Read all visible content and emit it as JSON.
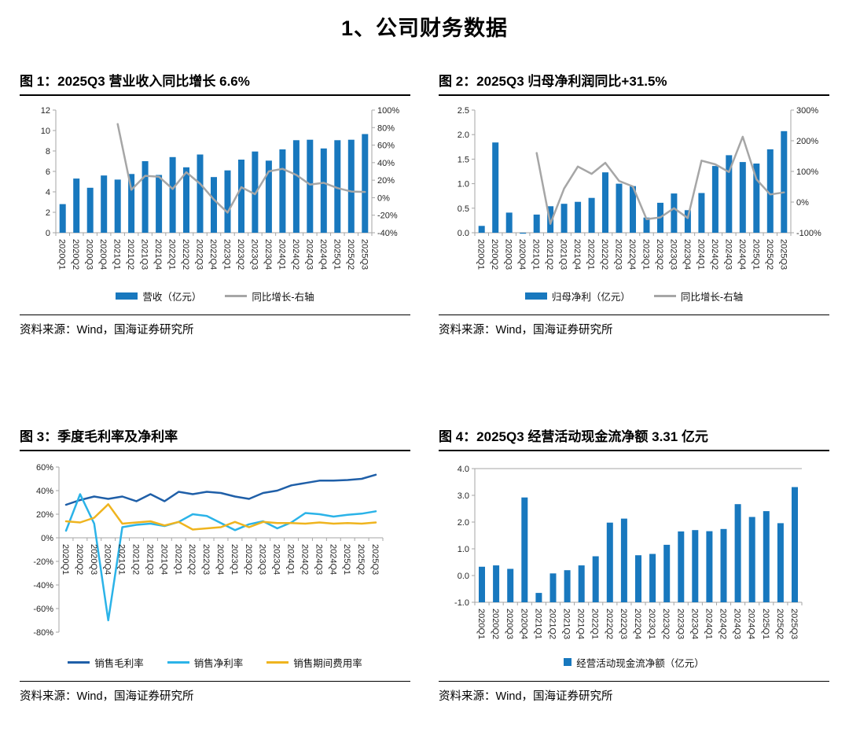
{
  "page": {
    "title": "1、公司财务数据"
  },
  "source": {
    "p1": "资料来源：",
    "p2": "Wind，",
    "p3": "国海证券研究所"
  },
  "chart_data": [
    {
      "type": "combo-bar-line",
      "title": "图 1：2025Q3 营业收入同比增长 6.6%",
      "categories": [
        "2020Q1",
        "2020Q2",
        "2020Q3",
        "2020Q4",
        "2021Q1",
        "2021Q2",
        "2021Q3",
        "2021Q4",
        "2022Q1",
        "2022Q2",
        "2022Q3",
        "2022Q4",
        "2023Q1",
        "2023Q2",
        "2023Q3",
        "2023Q4",
        "2024Q1",
        "2024Q2",
        "2024Q3",
        "2024Q4",
        "2025Q1",
        "2025Q2",
        "2025Q3"
      ],
      "left_axis": {
        "min": 0,
        "max": 12,
        "tick_values": [
          12,
          10,
          8,
          6,
          4,
          2,
          0
        ],
        "tick_labels": [
          "12",
          "10",
          "8",
          "6",
          "4",
          "2",
          "0"
        ]
      },
      "right_axis": {
        "min": -40,
        "max": 100,
        "tick_values": [
          100,
          80,
          60,
          40,
          20,
          0,
          -20,
          -40
        ],
        "tick_labels": [
          "100%",
          "80%",
          "60%",
          "40%",
          "20%",
          "0%",
          "-20%",
          "-40%"
        ]
      },
      "series": [
        {
          "name": "营收（亿元）",
          "type": "bar",
          "axis": "left",
          "color": "#1878BE",
          "values": [
            2.8,
            5.3,
            4.4,
            5.6,
            5.2,
            5.75,
            7.0,
            5.65,
            7.4,
            6.4,
            7.65,
            5.45,
            6.1,
            7.15,
            7.95,
            7.05,
            8.15,
            9.05,
            9.1,
            8.25,
            9.05,
            9.1,
            9.65
          ]
        },
        {
          "name": "同比增长-右轴",
          "type": "line",
          "axis": "right",
          "color": "#A6A6A6",
          "values": [
            null,
            null,
            null,
            null,
            84,
            9,
            25,
            24,
            10,
            29,
            16,
            -2,
            -17,
            12,
            4,
            30,
            33,
            26,
            15,
            17,
            11,
            7,
            6.6
          ]
        }
      ],
      "legend_position": "bottom"
    },
    {
      "type": "combo-bar-line",
      "title": "图 2：2025Q3 归母净利润同比+31.5%",
      "categories": [
        "2020Q1",
        "2020Q2",
        "2020Q3",
        "2020Q4",
        "2021Q1",
        "2021Q2",
        "2021Q3",
        "2021Q4",
        "2022Q1",
        "2022Q2",
        "2022Q3",
        "2022Q4",
        "2023Q1",
        "2023Q2",
        "2023Q3",
        "2023Q4",
        "2024Q1",
        "2024Q2",
        "2024Q3",
        "2024Q4",
        "2025Q1",
        "2025Q2",
        "2025Q3"
      ],
      "left_axis": {
        "min": 0,
        "max": 2.5,
        "tick_values": [
          2.5,
          2.0,
          1.5,
          1.0,
          0.5,
          0.0
        ],
        "tick_labels": [
          "2.5",
          "2.0",
          "1.5",
          "1.0",
          "0.5",
          "0.0"
        ]
      },
      "right_axis": {
        "min": -100,
        "max": 300,
        "tick_values": [
          300,
          200,
          100,
          0,
          -100
        ],
        "tick_labels": [
          "300%",
          "200%",
          "100%",
          "0%",
          "-100%"
        ]
      },
      "series": [
        {
          "name": "归母净利（亿元）",
          "type": "bar",
          "axis": "left",
          "color": "#1878BE",
          "values": [
            0.14,
            1.84,
            0.41,
            -0.02,
            0.37,
            0.54,
            0.59,
            0.63,
            0.71,
            1.23,
            1.0,
            0.95,
            0.31,
            0.61,
            0.8,
            0.46,
            0.81,
            1.36,
            1.58,
            1.44,
            1.41,
            1.7,
            2.07
          ]
        },
        {
          "name": "同比增长-右轴",
          "type": "line",
          "axis": "right",
          "color": "#A6A6A6",
          "values": [
            null,
            null,
            null,
            null,
            160,
            -71,
            44,
            116,
            92,
            128,
            69,
            51,
            -56,
            -50,
            -20,
            -52,
            135,
            123,
            98,
            213,
            74,
            25,
            31.5
          ]
        }
      ],
      "legend_position": "bottom"
    },
    {
      "type": "line",
      "title": "图 3：季度毛利率及净利率",
      "categories": [
        "2020Q1",
        "2020Q2",
        "2020Q3",
        "2020Q4",
        "2021Q1",
        "2021Q2",
        "2021Q3",
        "2021Q4",
        "2022Q1",
        "2022Q2",
        "2022Q3",
        "2022Q4",
        "2023Q1",
        "2023Q2",
        "2023Q3",
        "2023Q4",
        "2024Q1",
        "2024Q2",
        "2024Q3",
        "2024Q4",
        "2025Q1",
        "2025Q2",
        "2025Q3"
      ],
      "left_axis": {
        "min": -80,
        "max": 60,
        "tick_values": [
          60,
          40,
          20,
          0,
          -20,
          -40,
          -60,
          -80
        ],
        "tick_labels": [
          "60%",
          "40%",
          "20%",
          "0%",
          "-20%",
          "-40%",
          "-60%",
          "-80%"
        ]
      },
      "series": [
        {
          "name": "销售毛利率",
          "type": "line",
          "axis": "left",
          "color": "#1F5FA8",
          "values": [
            28,
            32,
            35,
            33,
            35,
            31,
            37,
            31,
            39,
            37,
            39,
            38,
            35,
            33,
            38,
            40,
            44.5,
            46.5,
            48.5,
            48.5,
            49,
            50,
            53.5
          ]
        },
        {
          "name": "销售净利率",
          "type": "line",
          "axis": "left",
          "color": "#2BB3E8",
          "values": [
            6,
            37,
            12,
            -70,
            9,
            11,
            12,
            10,
            13.5,
            20,
            18.5,
            12.5,
            6.5,
            11.5,
            14,
            8,
            13,
            21,
            20,
            18,
            19.5,
            20.5,
            22.5
          ]
        },
        {
          "name": "销售期间费用率",
          "type": "line",
          "axis": "left",
          "color": "#EFB41F",
          "values": [
            14,
            13,
            17,
            28.5,
            12,
            13,
            14,
            10.5,
            13.5,
            7,
            8,
            9,
            13.5,
            9,
            13.5,
            12.5,
            12.5,
            12,
            13,
            12,
            12.5,
            12,
            13
          ]
        }
      ],
      "legend_position": "bottom"
    },
    {
      "type": "bar",
      "title": "图 4：2025Q3 经营活动现金流净额 3.31 亿元",
      "categories": [
        "2020Q1",
        "2020Q2",
        "2020Q3",
        "2020Q4",
        "2021Q1",
        "2021Q2",
        "2021Q3",
        "2021Q4",
        "2022Q1",
        "2022Q2",
        "2022Q3",
        "2022Q4",
        "2023Q1",
        "2023Q2",
        "2023Q3",
        "2023Q4",
        "2024Q1",
        "2024Q2",
        "2024Q3",
        "2024Q4",
        "2025Q1",
        "2025Q2",
        "2025Q3"
      ],
      "left_axis": {
        "min": -1.0,
        "max": 4.0,
        "tick_values": [
          4.0,
          3.0,
          2.0,
          1.0,
          0.0,
          -1.0
        ],
        "tick_labels": [
          "4.0",
          "3.0",
          "2.0",
          "1.0",
          "0.0",
          "-1.0"
        ]
      },
      "series": [
        {
          "name": "经营活动现金流净额（亿元）",
          "type": "bar",
          "axis": "left",
          "color": "#1878BE",
          "values": [
            0.33,
            0.38,
            0.25,
            2.92,
            -0.65,
            0.08,
            0.2,
            0.38,
            0.72,
            1.98,
            2.13,
            0.76,
            0.81,
            1.15,
            1.65,
            1.7,
            1.66,
            1.74,
            2.67,
            2.19,
            2.41,
            1.96,
            3.31
          ]
        }
      ],
      "legend_position": "bottom"
    }
  ]
}
